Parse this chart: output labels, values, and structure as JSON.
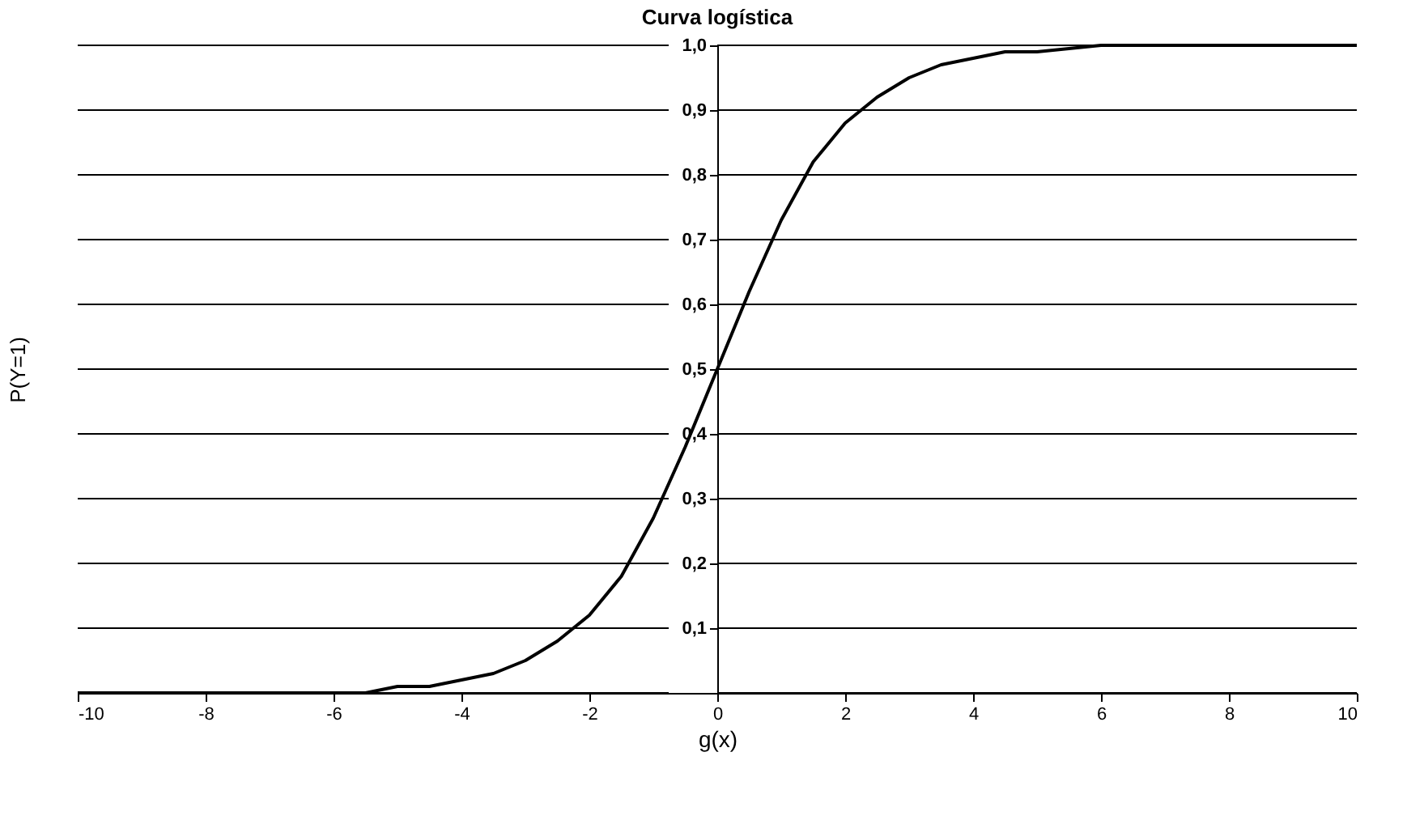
{
  "chart_data": {
    "type": "line",
    "title": "Curva logística",
    "xlabel": "g(x)",
    "ylabel": "P(Y=1)",
    "x": [
      -10,
      -9,
      -8,
      -7,
      -6,
      -5.5,
      -5,
      -4.5,
      -4,
      -3.5,
      -3,
      -2.5,
      -2,
      -1.5,
      -1,
      -0.5,
      0,
      0.5,
      1,
      1.5,
      2,
      2.5,
      3,
      3.5,
      4,
      4.5,
      5,
      6,
      7,
      8,
      9,
      10
    ],
    "series": [
      {
        "color": "#000000",
        "values": [
          0.0,
          0.0,
          0.0,
          0.0,
          0.0,
          0.0,
          0.01,
          0.01,
          0.02,
          0.03,
          0.05,
          0.08,
          0.12,
          0.18,
          0.27,
          0.38,
          0.5,
          0.62,
          0.73,
          0.82,
          0.88,
          0.92,
          0.95,
          0.97,
          0.98,
          0.99,
          0.99,
          1.0,
          1.0,
          1.0,
          1.0,
          1.0
        ]
      }
    ],
    "xlim": [
      -10,
      10
    ],
    "xticks": [
      -10,
      -8,
      -6,
      -4,
      -2,
      0,
      2,
      4,
      6,
      8,
      10
    ],
    "ylim": [
      0,
      1
    ],
    "yticks": [
      {
        "value": 0,
        "label": null
      },
      {
        "value": 0.1,
        "label": "0,1"
      },
      {
        "value": 0.2,
        "label": "0,2"
      },
      {
        "value": 0.3,
        "label": "0,3"
      },
      {
        "value": 0.4,
        "label": "0,4"
      },
      {
        "value": 0.5,
        "label": "0,5"
      },
      {
        "value": 0.6,
        "label": "0,6"
      },
      {
        "value": 0.7,
        "label": "0,7"
      },
      {
        "value": 0.8,
        "label": "0,8"
      },
      {
        "value": 0.9,
        "label": "0,9"
      },
      {
        "value": 1,
        "label": "1,0"
      }
    ],
    "grid": "y",
    "legend": false,
    "marker": "none",
    "line_style": "solid"
  }
}
